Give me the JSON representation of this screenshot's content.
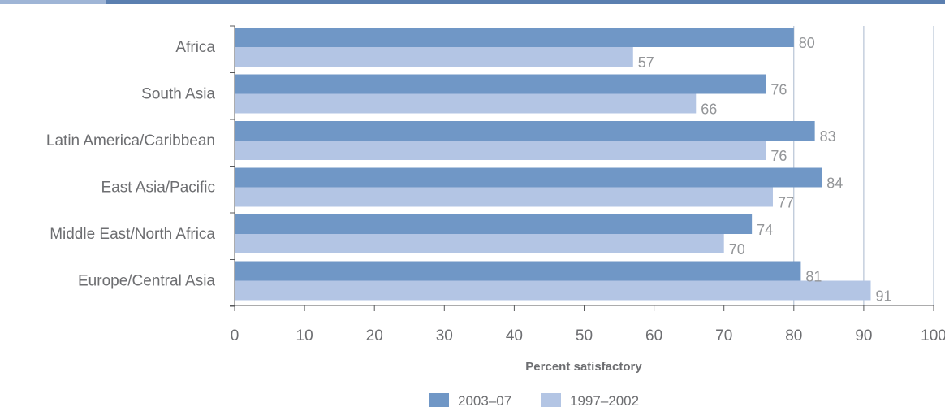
{
  "colors": {
    "top_bar": "#5b7fb0",
    "top_bar_accent": "#9fb5d6",
    "series_recent": "#7097c6",
    "series_earlier": "#b3c5e4",
    "axis": "#58595b",
    "gridline": "#a9b8cd",
    "label_text": "#6d6e71",
    "value_text": "#939598"
  },
  "chart_data": {
    "type": "bar",
    "orientation": "horizontal",
    "categories": [
      "Africa",
      "South Asia",
      "Latin America/Caribbean",
      "East Asia/Pacific",
      "Middle East/North Africa",
      "Europe/Central Asia"
    ],
    "series": [
      {
        "name": "2003–07",
        "values": [
          80,
          76,
          83,
          84,
          74,
          81
        ]
      },
      {
        "name": "1997–2002",
        "values": [
          57,
          66,
          76,
          77,
          70,
          91
        ]
      }
    ],
    "xlabel": "Percent satisfactory",
    "ylabel": "",
    "xlim": [
      0,
      100
    ],
    "xticks": [
      "0",
      "10",
      "20",
      "30",
      "40",
      "50",
      "60",
      "70",
      "80",
      "90",
      "100"
    ],
    "gridlines_at": [
      80,
      90,
      100
    ],
    "data_labels": true,
    "legend_position": "bottom"
  }
}
